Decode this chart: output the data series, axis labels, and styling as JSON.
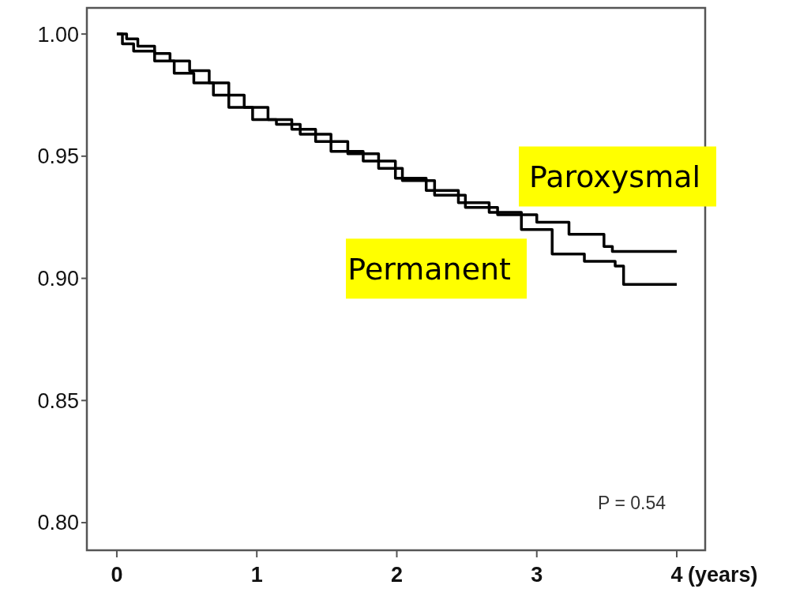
{
  "chart_data": {
    "type": "step",
    "xlim": [
      -0.214,
      4.203
    ],
    "xticks": [
      0,
      1,
      2,
      3,
      4
    ],
    "xlabel": "(years)",
    "ylim": [
      0.7887,
      1.0107
    ],
    "yticks": [
      {
        "value": 1.0,
        "label": "1.00"
      },
      0.95,
      {
        "value": 0.9,
        "label": "0.90"
      },
      0.85,
      {
        "value": 0.8,
        "label": "0.80"
      }
    ],
    "grid": false,
    "legend": false,
    "annotations": [
      {
        "text": "P = 0.54"
      }
    ],
    "series": [
      {
        "name": "Paroxysmal",
        "color": "#000000",
        "x": [
          0,
          0.07,
          0.15,
          0.27,
          0.38,
          0.52,
          0.66,
          0.8,
          0.91,
          1.08,
          1.25,
          1.42,
          1.65,
          1.87,
          2.04,
          2.27,
          2.49,
          2.72,
          3.0,
          3.23,
          3.48,
          3.54,
          4.0
        ],
        "values": [
          1.0,
          0.998,
          0.995,
          0.992,
          0.989,
          0.985,
          0.98,
          0.975,
          0.97,
          0.965,
          0.961,
          0.956,
          0.951,
          0.945,
          0.94,
          0.934,
          0.929,
          0.926,
          0.923,
          0.918,
          0.913,
          0.911,
          0.911
        ]
      },
      {
        "name": "Permanent",
        "color": "#000000",
        "x": [
          0,
          0.04,
          0.12,
          0.27,
          0.41,
          0.55,
          0.69,
          0.8,
          0.97,
          1.14,
          1.31,
          1.53,
          1.76,
          1.99,
          2.21,
          2.44,
          2.66,
          2.89,
          3.11,
          3.34,
          3.56,
          3.62,
          4.0
        ],
        "values": [
          1.0,
          0.996,
          0.993,
          0.989,
          0.984,
          0.98,
          0.975,
          0.97,
          0.965,
          0.963,
          0.959,
          0.952,
          0.948,
          0.941,
          0.936,
          0.931,
          0.927,
          0.92,
          0.91,
          0.907,
          0.905,
          0.8975,
          0.8975
        ]
      }
    ]
  }
}
